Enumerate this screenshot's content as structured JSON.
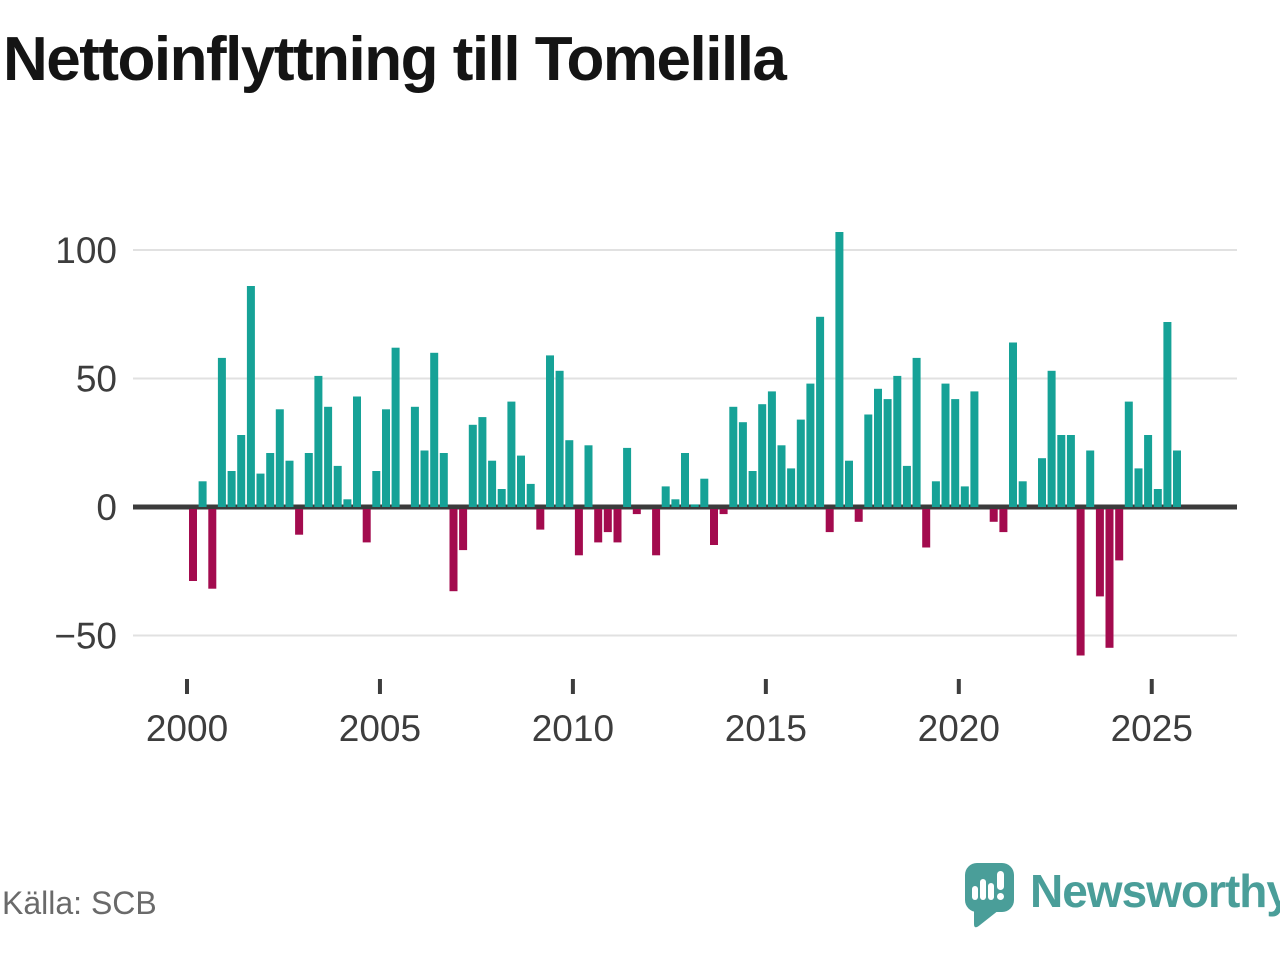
{
  "title": "Nettoinflyttning till Tomelilla",
  "source": {
    "label": "Källa: SCB"
  },
  "branding": {
    "name": "Newsworthy",
    "color": "#4a9e99"
  },
  "chart_data": {
    "type": "bar",
    "title": "Nettoinflyttning till Tomelilla",
    "period": "quarterly",
    "start": "2000-Q1",
    "end": "2025-Q3",
    "values": [
      -28,
      10,
      -31,
      58,
      14,
      28,
      86,
      13,
      21,
      38,
      18,
      -10,
      21,
      51,
      39,
      16,
      3,
      43,
      -13,
      14,
      38,
      62,
      0,
      39,
      22,
      60,
      21,
      -32,
      -16,
      32,
      35,
      18,
      7,
      41,
      20,
      9,
      -8,
      59,
      53,
      26,
      -18,
      24,
      -13,
      -9,
      -13,
      23,
      -2,
      0,
      -18,
      8,
      3,
      21,
      1,
      11,
      -14,
      -2,
      39,
      33,
      14,
      40,
      45,
      24,
      15,
      34,
      48,
      74,
      -9,
      107,
      18,
      -5,
      36,
      46,
      42,
      51,
      16,
      58,
      -15,
      10,
      48,
      42,
      8,
      45,
      0,
      -5,
      -9,
      64,
      10,
      0,
      19,
      53,
      28,
      28,
      -57,
      22,
      -34,
      -54,
      -20,
      41,
      15,
      28,
      7,
      72,
      22
    ],
    "x_tick_years": [
      2000,
      2005,
      2010,
      2015,
      2020,
      2025
    ],
    "y_ticks": [
      100,
      50,
      0,
      -50
    ],
    "ylim": [
      -65,
      115
    ],
    "grid": true,
    "legend": false,
    "colors": {
      "positive": "#16a297",
      "negative": "#a30b4e",
      "axis": "#3b3b3b",
      "gridline": "#e1e1e1",
      "tick_label": "#3d3d3d"
    }
  }
}
